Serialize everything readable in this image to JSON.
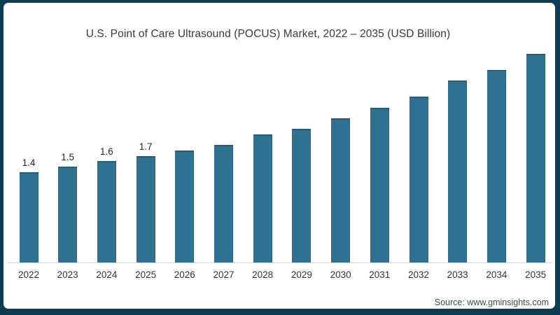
{
  "colors": {
    "frame_border": "#0d3c55",
    "card_background": "#ffffff",
    "bar_fill": "#2e7191",
    "axis_line": "#d6d6d6",
    "title_text": "#3a3a3a",
    "tick_text": "#333333",
    "source_text": "#3b4a59"
  },
  "source": {
    "text": "Source: www.gminsights.com"
  },
  "chart_data": {
    "type": "bar",
    "title": "U.S. Point of Care Ultrasound (POCUS) Market, 2022 – 2035 (USD Billion)",
    "xlabel": "",
    "ylabel": "",
    "y_axis_visible": false,
    "gridlines": false,
    "legend": "none",
    "categories": [
      "2022",
      "2023",
      "2024",
      "2025",
      "2026",
      "2027",
      "2028",
      "2029",
      "2030",
      "2031",
      "2032",
      "2033",
      "2034",
      "2035"
    ],
    "values": [
      1.4,
      1.5,
      1.6,
      1.7,
      1.8,
      1.9,
      2.1,
      2.2,
      2.4,
      2.6,
      2.8,
      3.1,
      3.3,
      3.6
    ],
    "data_labels": [
      "1.4",
      "1.5",
      "1.6",
      "1.7",
      "",
      "",
      "",
      "",
      "",
      "",
      "",
      "",
      "",
      ""
    ],
    "bar_color": "#2e7191",
    "axis_line_color": "#d6d6d6"
  }
}
